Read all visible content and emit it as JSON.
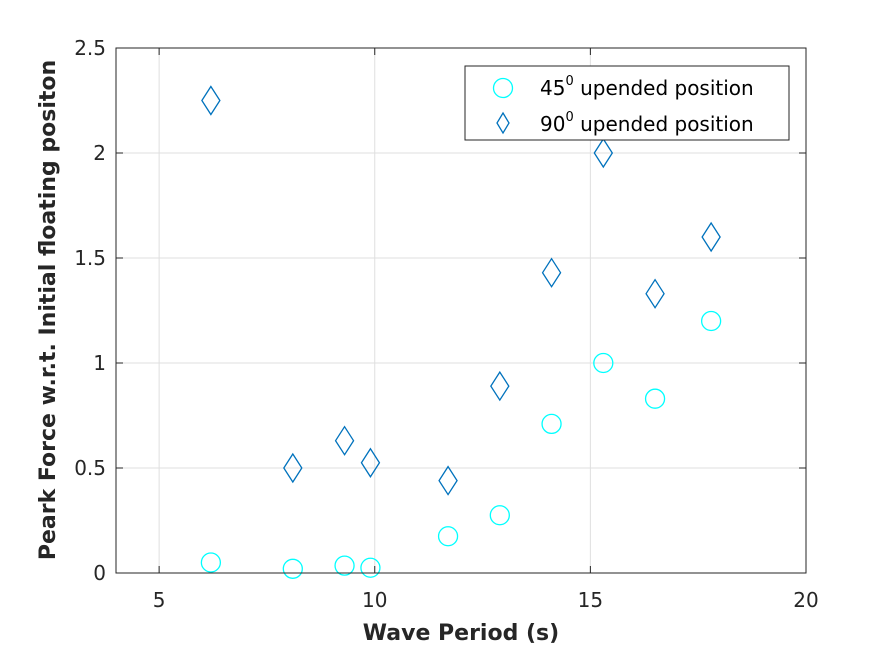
{
  "chart_data": {
    "type": "scatter",
    "xlabel": "Wave Period (s)",
    "ylabel": "Peark Force w.r.t. Initial floating positon",
    "xlim": [
      4,
      20
    ],
    "ylim": [
      0,
      2.5
    ],
    "x_ticks": [
      "5",
      "10",
      "15",
      "20"
    ],
    "y_ticks": [
      "0",
      "0.5",
      "1",
      "1.5",
      "2",
      "2.5"
    ],
    "x_tick_values": [
      5,
      10,
      15,
      20
    ],
    "y_tick_values": [
      0,
      0.5,
      1,
      1.5,
      2,
      2.5
    ],
    "grid": true,
    "legend_position": "top-right",
    "series": [
      {
        "legend_main": "45",
        "legend_sup": "0",
        "legend_rest": " upended position",
        "marker": "circle",
        "color": "#00FFFF",
        "x": [
          6.2,
          8.1,
          9.3,
          9.9,
          11.7,
          12.9,
          14.1,
          15.3,
          16.5,
          17.8
        ],
        "y": [
          0.05,
          0.02,
          0.035,
          0.025,
          0.175,
          0.275,
          0.71,
          1.0,
          0.83,
          1.2
        ]
      },
      {
        "legend_main": "90",
        "legend_sup": "0",
        "legend_rest": " upended position",
        "marker": "diamond",
        "color": "#0072BD",
        "x": [
          6.2,
          8.1,
          9.3,
          9.9,
          11.7,
          12.9,
          14.1,
          15.3,
          16.5,
          17.8
        ],
        "y": [
          2.25,
          0.5,
          0.63,
          0.525,
          0.44,
          0.89,
          1.43,
          2.0,
          1.33,
          1.6
        ]
      }
    ]
  }
}
